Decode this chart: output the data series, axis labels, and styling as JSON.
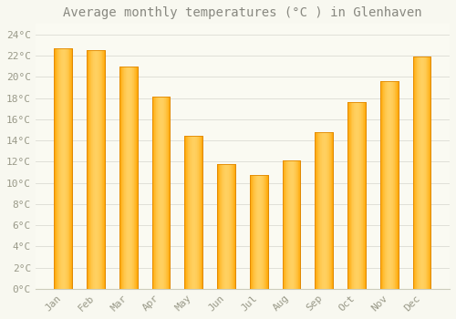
{
  "title": "Average monthly temperatures (°C ) in Glenhaven",
  "months": [
    "Jan",
    "Feb",
    "Mar",
    "Apr",
    "May",
    "Jun",
    "Jul",
    "Aug",
    "Sep",
    "Oct",
    "Nov",
    "Dec"
  ],
  "values": [
    22.7,
    22.5,
    21.0,
    18.1,
    14.4,
    11.8,
    10.7,
    12.1,
    14.8,
    17.6,
    19.6,
    21.9
  ],
  "bar_color_main": "#FFA500",
  "bar_color_light": "#FFD060",
  "bar_color_edge": "#E08800",
  "background_color": "#F8F8F0",
  "plot_bg_color": "#FAFAF2",
  "grid_color": "#E0E0D8",
  "tick_label_color": "#999988",
  "title_color": "#888880",
  "ylim": [
    0,
    25
  ],
  "yticks": [
    0,
    2,
    4,
    6,
    8,
    10,
    12,
    14,
    16,
    18,
    20,
    22,
    24
  ],
  "title_fontsize": 10,
  "tick_fontsize": 8,
  "bar_width": 0.55
}
